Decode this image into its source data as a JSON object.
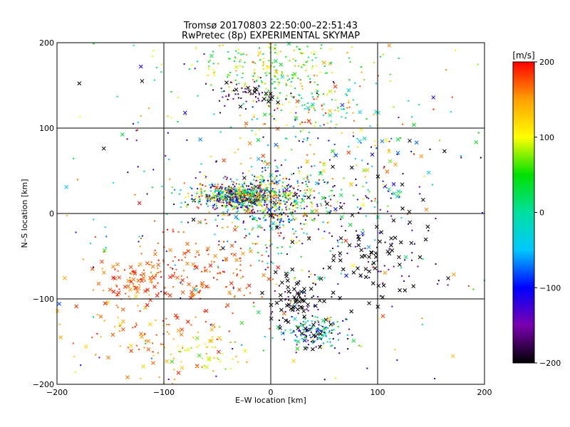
{
  "chart_data": {
    "type": "scatter",
    "title": "Tromsø 20170803 22:50:00–22:51:43",
    "subtitle": "RwPretec (8p) EXPERIMENTAL SKYMAP",
    "xlabel": "E–W location [km]",
    "ylabel": "N–S location [km]",
    "xlim": [
      -200,
      200
    ],
    "ylim": [
      -200,
      200
    ],
    "x_ticks": [
      "−200",
      "−100",
      "0",
      "100",
      "200"
    ],
    "y_ticks": [
      "−200",
      "−100",
      "0",
      "100",
      "200"
    ],
    "grid": true,
    "colorbar": {
      "label": "[m/s]",
      "range": [
        -200,
        200
      ],
      "ticks": [
        "−200",
        "−100",
        "0",
        "100",
        "200"
      ],
      "colormap": [
        "#000000",
        "#7a00b0",
        "#0000ff",
        "#00c8ff",
        "#00e0a0",
        "#00e000",
        "#ffff00",
        "#ffa000",
        "#ff0000"
      ]
    },
    "marker_types": [
      "dot",
      "x"
    ],
    "x_mark_color": "#000000",
    "clusters": [
      {
        "cx": -28,
        "cy": 20,
        "sx": 22,
        "sy": 8,
        "n": 700,
        "vmin": -200,
        "vmax": 200,
        "xfrac": 0.05
      },
      {
        "cx": 5,
        "cy": 10,
        "sx": 25,
        "sy": 25,
        "n": 450,
        "vmin": -200,
        "vmax": 200,
        "xfrac": 0.08
      },
      {
        "cx": 0,
        "cy": 170,
        "sx": 45,
        "sy": 20,
        "n": 220,
        "vmin": 0,
        "vmax": 150,
        "xfrac": 0.05
      },
      {
        "cx": 40,
        "cy": 120,
        "sx": 40,
        "sy": 30,
        "n": 160,
        "vmin": -50,
        "vmax": 200,
        "xfrac": 0.1
      },
      {
        "cx": -70,
        "cy": -65,
        "sx": 35,
        "sy": 25,
        "n": 170,
        "vmin": 150,
        "vmax": 200,
        "xfrac": 0.35
      },
      {
        "cx": -130,
        "cy": -80,
        "sx": 20,
        "sy": 15,
        "n": 70,
        "vmin": 150,
        "vmax": 200,
        "xfrac": 0.45
      },
      {
        "cx": -120,
        "cy": -150,
        "sx": 35,
        "sy": 25,
        "n": 90,
        "vmin": 120,
        "vmax": 200,
        "xfrac": 0.4
      },
      {
        "cx": -60,
        "cy": -160,
        "sx": 15,
        "sy": 15,
        "n": 50,
        "vmin": 60,
        "vmax": 160,
        "xfrac": 0.25
      },
      {
        "cx": 40,
        "cy": -140,
        "sx": 15,
        "sy": 10,
        "n": 180,
        "vmin": -200,
        "vmax": 60,
        "xfrac": 0.1
      },
      {
        "cx": 25,
        "cy": -100,
        "sx": 12,
        "sy": 20,
        "n": 90,
        "vmin": -200,
        "vmax": -150,
        "xfrac": 0.6
      },
      {
        "cx": 100,
        "cy": -50,
        "sx": 30,
        "sy": 30,
        "n": 110,
        "vmin": -200,
        "vmax": -120,
        "xfrac": 0.6
      },
      {
        "cx": 90,
        "cy": 40,
        "sx": 35,
        "sy": 40,
        "n": 120,
        "vmin": -200,
        "vmax": 200,
        "xfrac": 0.45
      },
      {
        "cx": -20,
        "cy": 140,
        "sx": 20,
        "sy": 10,
        "n": 60,
        "vmin": -200,
        "vmax": -150,
        "xfrac": 0.3
      },
      {
        "cx": 0,
        "cy": 0,
        "sx": 110,
        "sy": 110,
        "n": 350,
        "vmin": -200,
        "vmax": 200,
        "xfrac": 0.15
      }
    ]
  }
}
